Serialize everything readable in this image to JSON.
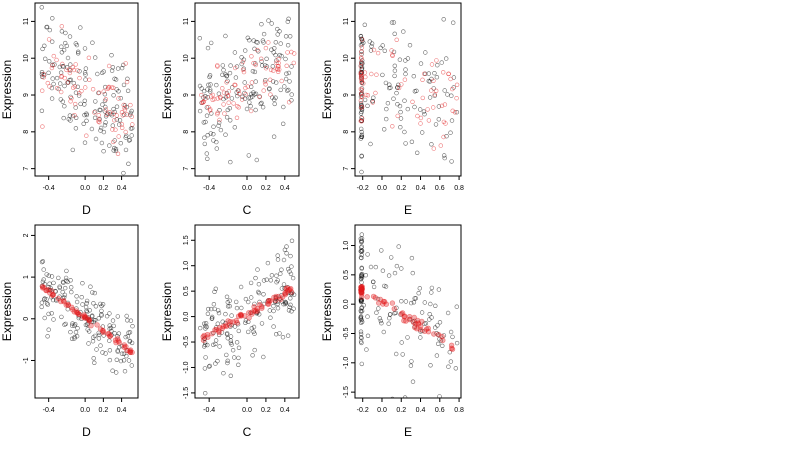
{
  "chart_data": [
    {
      "type": "scatter",
      "xlabel": "D",
      "ylabel": "Expression",
      "xlim": [
        -0.55,
        0.58
      ],
      "ylim": [
        6.8,
        11.5
      ],
      "xticks": [
        -0.4,
        0.0,
        0.2,
        0.4
      ],
      "xtick_labels": [
        "-0.4",
        "0.0",
        "0.2",
        "0.4"
      ],
      "yticks": [
        7,
        8,
        9,
        10,
        11
      ],
      "ytick_labels": [
        "7",
        "8",
        "9",
        "10",
        "11"
      ],
      "series": [
        {
          "color": "#000000",
          "marker": "open-circle",
          "x_range": [
            -0.48,
            0.52
          ],
          "y_center": [
            9.8,
            8.4
          ],
          "spread": 0.75,
          "n": 160
        },
        {
          "color": "#e31a1c",
          "marker": "open-circle",
          "x_range": [
            -0.48,
            0.52
          ],
          "y_center": [
            9.9,
            8.3
          ],
          "spread": 0.5,
          "n": 80
        }
      ]
    },
    {
      "type": "scatter",
      "xlabel": "C",
      "ylabel": "Expression",
      "xlim": [
        -0.55,
        0.55
      ],
      "ylim": [
        6.8,
        11.5
      ],
      "xticks": [
        -0.4,
        0.0,
        0.2,
        0.4
      ],
      "xtick_labels": [
        "-0.4",
        "0.0",
        "0.2",
        "0.4"
      ],
      "yticks": [
        7,
        8,
        9,
        10,
        11
      ],
      "ytick_labels": [
        "7",
        "8",
        "9",
        "10",
        "11"
      ],
      "series": [
        {
          "color": "#000000",
          "marker": "open-circle",
          "x_range": [
            -0.5,
            0.5
          ],
          "y_center": [
            8.5,
            10.0
          ],
          "spread": 0.75,
          "n": 160
        },
        {
          "color": "#e31a1c",
          "marker": "open-circle",
          "x_range": [
            -0.5,
            0.5
          ],
          "y_center": [
            8.6,
            9.9
          ],
          "spread": 0.4,
          "n": 80
        }
      ]
    },
    {
      "type": "scatter",
      "xlabel": "E",
      "ylabel": "Expression",
      "xlim": [
        -0.28,
        0.82
      ],
      "ylim": [
        6.8,
        11.5
      ],
      "xticks": [
        -0.2,
        0.0,
        0.2,
        0.4,
        0.6,
        0.8
      ],
      "xtick_labels": [
        "-0.2",
        "0.0",
        "0.2",
        "0.4",
        "0.6",
        "0.8"
      ],
      "yticks": [
        7,
        8,
        9,
        10,
        11
      ],
      "ytick_labels": [
        "7",
        "8",
        "9",
        "10",
        "11"
      ],
      "series": [
        {
          "color": "#000000",
          "marker": "open-circle",
          "x_range": [
            -0.22,
            0.78
          ],
          "y_center": [
            9.2,
            8.8
          ],
          "spread": 0.9,
          "n": 150
        },
        {
          "color": "#e31a1c",
          "marker": "open-circle",
          "x_range": [
            -0.22,
            0.78
          ],
          "y_center": [
            9.3,
            8.9
          ],
          "spread": 0.6,
          "n": 80
        }
      ]
    },
    {
      "type": "scatter",
      "xlabel": "D",
      "ylabel": "Expression",
      "xlim": [
        -0.55,
        0.58
      ],
      "ylim": [
        -1.9,
        2.25
      ],
      "xticks": [
        -0.4,
        0.0,
        0.2,
        0.4
      ],
      "xtick_labels": [
        "-0.4",
        "0.0",
        "0.2",
        "0.4"
      ],
      "yticks": [
        -1,
        0,
        1,
        2
      ],
      "ytick_labels": [
        "-1",
        "0",
        "1",
        "2"
      ],
      "series": [
        {
          "color": "#000000",
          "marker": "open-circle",
          "x_range": [
            -0.48,
            0.52
          ],
          "y_center": [
            0.8,
            -0.75
          ],
          "spread": 0.45,
          "n": 170
        },
        {
          "color": "#e31a1c",
          "marker": "filled-circle",
          "x_range": [
            -0.48,
            0.52
          ],
          "y_center": [
            0.78,
            -0.8
          ],
          "spread": 0.03,
          "n": 60
        }
      ]
    },
    {
      "type": "scatter",
      "xlabel": "C",
      "ylabel": "Expression",
      "xlim": [
        -0.55,
        0.55
      ],
      "ylim": [
        -1.6,
        1.8
      ],
      "xticks": [
        -0.4,
        0.0,
        0.2,
        0.4
      ],
      "xtick_labels": [
        "-0.4",
        "0.0",
        "0.2",
        "0.4"
      ],
      "yticks": [
        -1.5,
        -1.0,
        -0.5,
        0.0,
        0.5,
        1.0,
        1.5
      ],
      "ytick_labels": [
        "-1.5",
        "-1.0",
        "-0.5",
        "0.0",
        "0.5",
        "1.0",
        "1.5"
      ],
      "series": [
        {
          "color": "#000000",
          "marker": "open-circle",
          "x_range": [
            -0.5,
            0.5
          ],
          "y_center": [
            -0.5,
            0.55
          ],
          "spread": 0.45,
          "n": 170
        },
        {
          "color": "#e31a1c",
          "marker": "filled-circle",
          "x_range": [
            -0.5,
            0.5
          ],
          "y_center": [
            -0.45,
            0.55
          ],
          "spread": 0.04,
          "n": 60
        }
      ]
    },
    {
      "type": "scatter",
      "xlabel": "E",
      "ylabel": "Expression",
      "xlim": [
        -0.28,
        0.82
      ],
      "ylim": [
        -1.6,
        1.35
      ],
      "xticks": [
        -0.2,
        0.0,
        0.2,
        0.4,
        0.6,
        0.8
      ],
      "xtick_labels": [
        "-0.2",
        "0.0",
        "0.2",
        "0.4",
        "0.6",
        "0.8"
      ],
      "yticks": [
        -1.5,
        -1.0,
        -0.5,
        0.0,
        0.5,
        1.0
      ],
      "ytick_labels": [
        "-1.5",
        "-1.0",
        "-0.5",
        "0.0",
        "0.5",
        "1.0"
      ],
      "series": [
        {
          "color": "#000000",
          "marker": "open-circle",
          "x_range": [
            -0.22,
            0.78
          ],
          "y_center": [
            0.3,
            -0.75
          ],
          "spread": 0.5,
          "n": 160
        },
        {
          "color": "#e31a1c",
          "marker": "filled-circle",
          "x_range": [
            -0.22,
            0.78
          ],
          "y_center": [
            0.25,
            -0.75
          ],
          "spread": 0.04,
          "n": 60
        }
      ]
    }
  ]
}
